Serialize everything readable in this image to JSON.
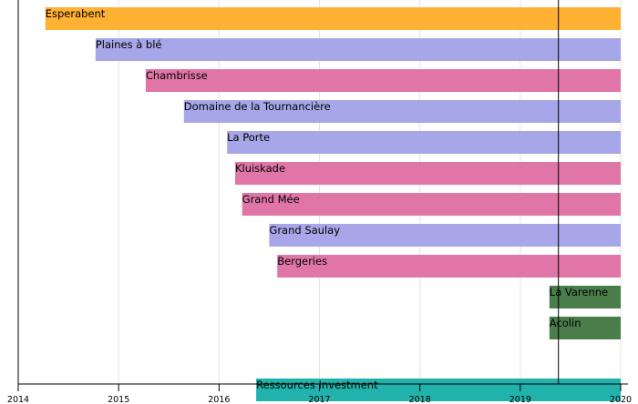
{
  "chart_data": {
    "type": "timeline",
    "title": "",
    "xlabel": "",
    "ylabel": "",
    "x_range": [
      2014.0,
      2020.0
    ],
    "ticks": [
      {
        "value": 2014,
        "label": "2014"
      },
      {
        "value": 2015,
        "label": "2015"
      },
      {
        "value": 2016,
        "label": "2016"
      },
      {
        "value": 2017,
        "label": "2017"
      },
      {
        "value": 2018,
        "label": "2018"
      },
      {
        "value": 2019,
        "label": "2019"
      },
      {
        "value": 2020,
        "label": "2020"
      }
    ],
    "grid": true,
    "marker_year": 2019.38,
    "colors": {
      "orange": "#ffb133",
      "lavender": "#a6a6e8",
      "pink": "#e076a7",
      "green": "#4b7d4b",
      "teal": "#21b2ab"
    },
    "bars": [
      {
        "label": "Esperabent",
        "start": 2014.27,
        "end": 2020.0,
        "color": "orange"
      },
      {
        "label": "Plaines à blé",
        "start": 2014.77,
        "end": 2020.0,
        "color": "lavender"
      },
      {
        "label": "Chambrisse",
        "start": 2015.27,
        "end": 2020.0,
        "color": "pink"
      },
      {
        "label": "Domaine de la Tournancière",
        "start": 2015.65,
        "end": 2020.0,
        "color": "lavender"
      },
      {
        "label": "La Porte",
        "start": 2016.08,
        "end": 2020.0,
        "color": "lavender"
      },
      {
        "label": "Kluiskade",
        "start": 2016.16,
        "end": 2020.0,
        "color": "pink"
      },
      {
        "label": "Grand Mée",
        "start": 2016.23,
        "end": 2020.0,
        "color": "pink"
      },
      {
        "label": "Grand Saulay",
        "start": 2016.5,
        "end": 2020.0,
        "color": "lavender"
      },
      {
        "label": "Bergeries",
        "start": 2016.58,
        "end": 2020.0,
        "color": "pink"
      },
      {
        "label": "La Varenne",
        "start": 2019.29,
        "end": 2020.0,
        "color": "green"
      },
      {
        "label": "Acolin",
        "start": 2019.29,
        "end": 2020.0,
        "color": "green"
      },
      {
        "label": "",
        "start": null,
        "end": null,
        "color": null
      },
      {
        "label": "Ressources Investment",
        "start": 2016.37,
        "end": 2020.0,
        "color": "teal"
      }
    ]
  }
}
